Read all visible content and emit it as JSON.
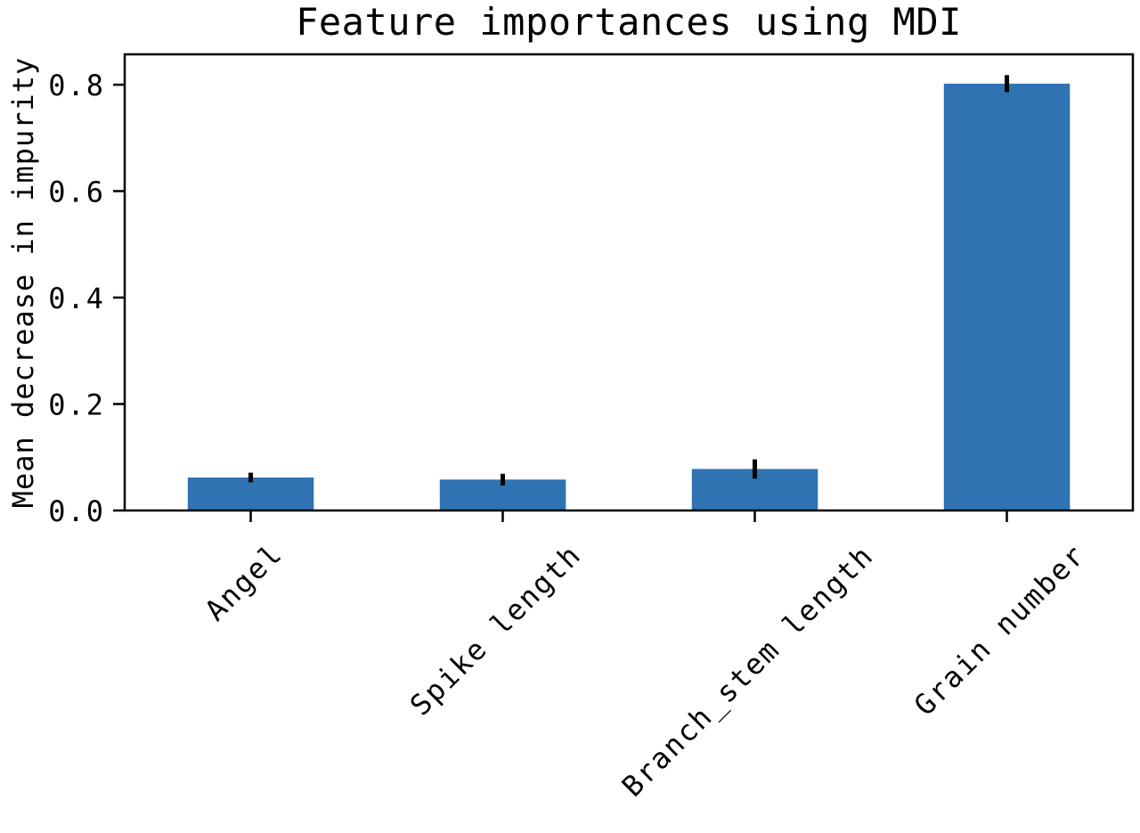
{
  "figure": {
    "background": "#ffffff",
    "text_color": "#000000"
  },
  "chart_data": {
    "type": "bar",
    "title": "Feature importances using MDI",
    "ylabel": "Mean decrease in impurity",
    "xlabel": "",
    "categories": [
      "Angel",
      "Spike length",
      "Branch_stem length",
      "Grain number"
    ],
    "values": [
      0.062,
      0.058,
      0.078,
      0.802
    ],
    "error_bars": [
      0.009,
      0.011,
      0.018,
      0.016
    ],
    "ytick_labels": [
      "0.0",
      "0.2",
      "0.4",
      "0.6",
      "0.8"
    ],
    "ytick_values": [
      0.0,
      0.2,
      0.4,
      0.6,
      0.8
    ],
    "ylim": [
      0,
      0.857
    ],
    "bar_color": "#2f73b2",
    "error_bar_color": "#000000",
    "axis_color": "#000000",
    "bar_width_frac": 0.5,
    "xtick_rotation_deg": 45,
    "grid": false,
    "legend_position": "none"
  }
}
